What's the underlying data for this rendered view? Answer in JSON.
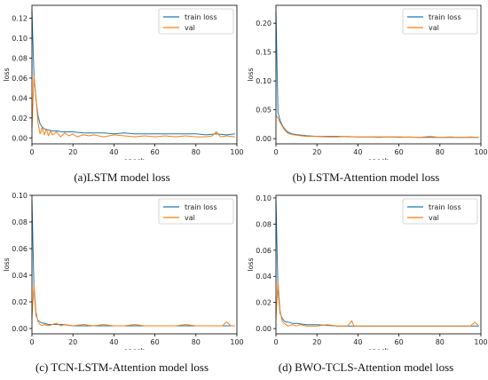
{
  "colors": {
    "train": "#1f77b4",
    "val": "#ff7f0e"
  },
  "chart_data": [
    {
      "type": "line",
      "caption": "(a)LSTM model loss",
      "xlabel": "epoch",
      "ylabel": "loss",
      "xlim": [
        0,
        100
      ],
      "ylim": [
        -0.006,
        0.133
      ],
      "xticks": [
        0,
        20,
        40,
        60,
        80,
        100
      ],
      "xtick_labels": [
        "0",
        "20",
        "40",
        "60",
        "80",
        "100"
      ],
      "yticks": [
        0.0,
        0.02,
        0.04,
        0.06,
        0.08,
        0.1,
        0.12
      ],
      "ytick_labels": [
        "0.00",
        "0.02",
        "0.04",
        "0.06",
        "0.08",
        "0.10",
        "0.12"
      ],
      "legend": "top-right",
      "series": [
        {
          "name": "train loss",
          "x": [
            0,
            1,
            2,
            3,
            4,
            5,
            6,
            8,
            10,
            12,
            15,
            20,
            25,
            30,
            35,
            40,
            45,
            50,
            55,
            60,
            65,
            70,
            75,
            80,
            85,
            90,
            95,
            99
          ],
          "values": [
            0.128,
            0.062,
            0.038,
            0.022,
            0.014,
            0.011,
            0.009,
            0.008,
            0.007,
            0.007,
            0.006,
            0.006,
            0.005,
            0.005,
            0.005,
            0.004,
            0.005,
            0.004,
            0.004,
            0.004,
            0.004,
            0.004,
            0.004,
            0.004,
            0.003,
            0.004,
            0.003,
            0.004
          ]
        },
        {
          "name": "val",
          "x": [
            0,
            1,
            2,
            3,
            4,
            5,
            6,
            7,
            8,
            9,
            10,
            12,
            14,
            16,
            18,
            20,
            22,
            25,
            28,
            30,
            35,
            40,
            45,
            50,
            55,
            60,
            65,
            70,
            75,
            80,
            85,
            88,
            90,
            92,
            95,
            99
          ],
          "values": [
            0.01,
            0.062,
            0.04,
            0.015,
            0.004,
            0.01,
            0.003,
            0.009,
            0.002,
            0.007,
            0.003,
            0.006,
            0.001,
            0.005,
            0.002,
            0.004,
            0.001,
            0.003,
            0.002,
            0.003,
            0.001,
            0.003,
            0.002,
            0.001,
            0.002,
            0.001,
            0.002,
            0.001,
            0.002,
            0.001,
            0.001,
            0.002,
            0.006,
            0.001,
            0.002,
            0.001
          ]
        }
      ]
    },
    {
      "type": "line",
      "caption": "(b) LSTM-Attention model loss",
      "xlabel": "epoch",
      "ylabel": "loss",
      "xlim": [
        0,
        100
      ],
      "ylim": [
        -0.009,
        0.231
      ],
      "xticks": [
        0,
        20,
        40,
        60,
        80,
        100
      ],
      "xtick_labels": [
        "0",
        "20",
        "40",
        "60",
        "80",
        "100"
      ],
      "yticks": [
        0.0,
        0.05,
        0.1,
        0.15,
        0.2
      ],
      "ytick_labels": [
        "0.00",
        "0.05",
        "0.10",
        "0.15",
        "0.20"
      ],
      "legend": "top-right",
      "series": [
        {
          "name": "train loss",
          "x": [
            0,
            1,
            2,
            3,
            4,
            5,
            6,
            8,
            10,
            15,
            20,
            30,
            40,
            50,
            60,
            70,
            80,
            90,
            99
          ],
          "values": [
            0.22,
            0.045,
            0.032,
            0.024,
            0.018,
            0.014,
            0.011,
            0.008,
            0.007,
            0.005,
            0.004,
            0.004,
            0.003,
            0.003,
            0.003,
            0.002,
            0.002,
            0.002,
            0.002
          ]
        },
        {
          "name": "val",
          "x": [
            0,
            1,
            2,
            3,
            4,
            5,
            6,
            8,
            10,
            12,
            15,
            20,
            25,
            30,
            35,
            40,
            45,
            50,
            55,
            60,
            65,
            70,
            75,
            80,
            85,
            90,
            95,
            99
          ],
          "values": [
            0.04,
            0.036,
            0.028,
            0.022,
            0.016,
            0.012,
            0.009,
            0.007,
            0.006,
            0.005,
            0.004,
            0.004,
            0.003,
            0.003,
            0.004,
            0.003,
            0.003,
            0.002,
            0.003,
            0.002,
            0.003,
            0.002,
            0.004,
            0.002,
            0.003,
            0.002,
            0.003,
            0.002
          ]
        }
      ]
    },
    {
      "type": "line",
      "caption": "(c) TCN-LSTM-Attention model loss",
      "xlabel": "epoch",
      "ylabel": "loss",
      "xlim": [
        0,
        100
      ],
      "ylim": [
        -0.004,
        0.1
      ],
      "xticks": [
        0,
        20,
        40,
        60,
        80,
        100
      ],
      "xtick_labels": [
        "0",
        "20",
        "40",
        "60",
        "80",
        "100"
      ],
      "yticks": [
        0.0,
        0.02,
        0.04,
        0.06,
        0.08,
        0.1
      ],
      "ytick_labels": [
        "0.00",
        "0.02",
        "0.04",
        "0.06",
        "0.08",
        "0.10"
      ],
      "legend": "top-right",
      "series": [
        {
          "name": "train loss",
          "x": [
            0,
            1,
            2,
            3,
            4,
            5,
            6,
            8,
            10,
            15,
            20,
            30,
            40,
            50,
            60,
            70,
            80,
            90,
            95,
            99
          ],
          "values": [
            0.096,
            0.03,
            0.01,
            0.006,
            0.005,
            0.004,
            0.004,
            0.003,
            0.003,
            0.003,
            0.002,
            0.002,
            0.002,
            0.002,
            0.002,
            0.002,
            0.002,
            0.002,
            0.002,
            0.002
          ]
        },
        {
          "name": "val",
          "x": [
            0,
            1,
            2,
            3,
            4,
            5,
            6,
            8,
            10,
            12,
            14,
            16,
            20,
            25,
            30,
            35,
            40,
            45,
            50,
            55,
            60,
            65,
            70,
            75,
            80,
            85,
            90,
            93,
            95,
            97,
            99
          ],
          "values": [
            0.008,
            0.033,
            0.012,
            0.005,
            0.003,
            0.002,
            0.003,
            0.002,
            0.003,
            0.004,
            0.002,
            0.003,
            0.002,
            0.003,
            0.002,
            0.003,
            0.002,
            0.002,
            0.003,
            0.002,
            0.002,
            0.002,
            0.002,
            0.003,
            0.002,
            0.002,
            0.002,
            0.002,
            0.005,
            0.002,
            0.002
          ]
        }
      ]
    },
    {
      "type": "line",
      "caption": "(d) BWO-TCLS-Attention model loss",
      "xlabel": "epoch",
      "ylabel": "loss",
      "xlim": [
        0,
        100
      ],
      "ylim": [
        -0.004,
        0.102
      ],
      "xticks": [
        0,
        20,
        40,
        60,
        80,
        100
      ],
      "xtick_labels": [
        "0",
        "20",
        "40",
        "60",
        "80",
        "100"
      ],
      "yticks": [
        0.0,
        0.02,
        0.04,
        0.06,
        0.08,
        0.1
      ],
      "ytick_labels": [
        "0.00",
        "0.02",
        "0.04",
        "0.06",
        "0.08",
        "0.10"
      ],
      "legend": "top-right",
      "series": [
        {
          "name": "train loss",
          "x": [
            0,
            1,
            2,
            3,
            4,
            5,
            6,
            8,
            10,
            15,
            20,
            30,
            40,
            50,
            60,
            70,
            80,
            90,
            99
          ],
          "values": [
            0.098,
            0.03,
            0.012,
            0.008,
            0.006,
            0.005,
            0.005,
            0.004,
            0.004,
            0.003,
            0.003,
            0.002,
            0.002,
            0.002,
            0.002,
            0.002,
            0.002,
            0.002,
            0.002
          ]
        },
        {
          "name": "val",
          "x": [
            0,
            1,
            2,
            3,
            4,
            5,
            6,
            8,
            10,
            12,
            15,
            20,
            25,
            30,
            35,
            37,
            38,
            40,
            45,
            50,
            55,
            60,
            65,
            70,
            75,
            80,
            85,
            90,
            95,
            97,
            99
          ],
          "values": [
            0.008,
            0.036,
            0.014,
            0.006,
            0.004,
            0.003,
            0.002,
            0.003,
            0.002,
            0.003,
            0.002,
            0.002,
            0.003,
            0.002,
            0.002,
            0.006,
            0.002,
            0.002,
            0.002,
            0.002,
            0.002,
            0.002,
            0.002,
            0.002,
            0.002,
            0.002,
            0.002,
            0.002,
            0.002,
            0.005,
            0.002
          ]
        }
      ]
    }
  ]
}
